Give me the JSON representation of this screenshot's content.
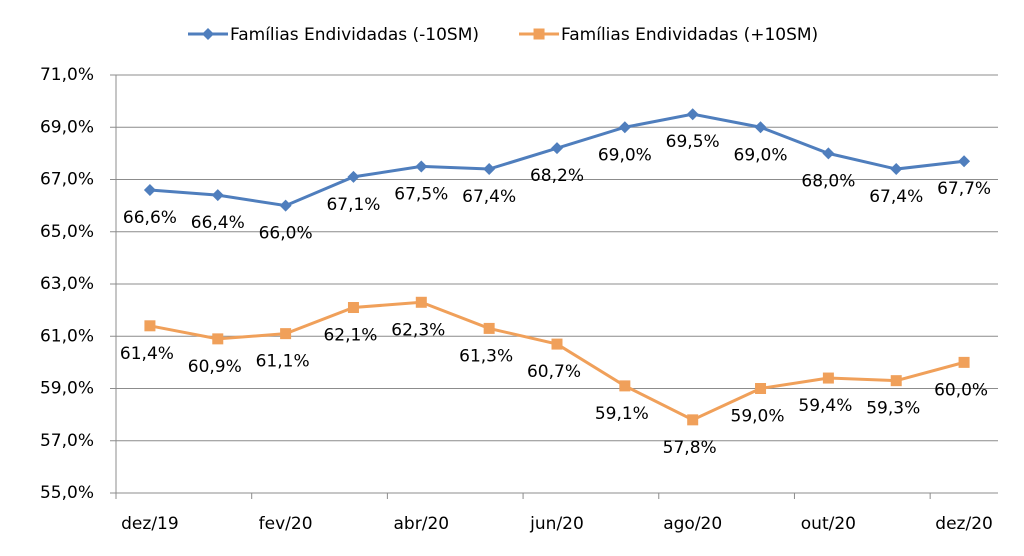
{
  "chart_data": {
    "type": "line",
    "categories": [
      "dez/19",
      null,
      "fev/20",
      null,
      "abr/20",
      null,
      "jun/20",
      null,
      "ago/20",
      null,
      "out/20",
      null,
      "dez/20"
    ],
    "series": [
      {
        "name": "Famílias Endividadas (-10SM)",
        "color": "#4f7ebd",
        "marker": "diamond",
        "values": [
          66.6,
          66.4,
          66.0,
          67.1,
          67.5,
          67.4,
          68.2,
          69.0,
          69.5,
          69.0,
          68.0,
          67.4,
          67.7
        ],
        "value_labels": [
          "66,6%",
          "66,4%",
          "66,0%",
          "67,1%",
          "67,5%",
          "67,4%",
          "68,2%",
          "69,0%",
          "69,5%",
          "69,0%",
          "68,0%",
          "67,4%",
          "67,7%"
        ]
      },
      {
        "name": "Famílias Endividadas (+10SM)",
        "color": "#f0a05a",
        "marker": "square",
        "values": [
          61.4,
          60.9,
          61.1,
          62.1,
          62.3,
          61.3,
          60.7,
          59.1,
          57.8,
          59.0,
          59.4,
          59.3,
          60.0
        ],
        "value_labels": [
          "61,4%",
          "60,9%",
          "61,1%",
          "62,1%",
          "62,3%",
          "61,3%",
          "60,7%",
          "59,1%",
          "57,8%",
          "59,0%",
          "59,4%",
          "59,3%",
          "60,0%"
        ]
      }
    ],
    "ylim": [
      55,
      71
    ],
    "yticks": [
      {
        "value": 55,
        "label": "55,0%"
      },
      {
        "value": 57,
        "label": "57,0%"
      },
      {
        "value": 59,
        "label": "59,0%"
      },
      {
        "value": 61,
        "label": "61,0%"
      },
      {
        "value": 63,
        "label": "63,0%"
      },
      {
        "value": 65,
        "label": "65,0%"
      },
      {
        "value": 67,
        "label": "67,0%"
      },
      {
        "value": 69,
        "label": "69,0%"
      },
      {
        "value": 71,
        "label": "71,0%"
      }
    ],
    "grid": true,
    "legend": "top"
  }
}
